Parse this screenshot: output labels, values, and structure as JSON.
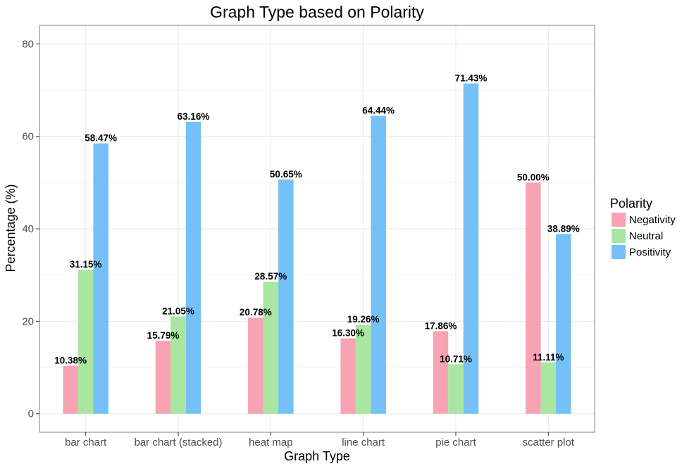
{
  "chart_data": {
    "type": "bar",
    "title": "Graph Type based on Polarity",
    "xlabel": "Graph Type",
    "ylabel": "Percentage (%)",
    "ylim": [
      -4,
      84
    ],
    "yticks": [
      0,
      20,
      40,
      60,
      80
    ],
    "grid": true,
    "legend": {
      "title": "Polarity",
      "position": "right"
    },
    "categories": [
      "bar chart",
      "bar chart (stacked)",
      "heat map",
      "line chart",
      "pie chart",
      "scatter plot"
    ],
    "series": [
      {
        "name": "Negativity",
        "color": "#F8A3B4",
        "values": [
          10.38,
          15.79,
          20.78,
          16.3,
          17.86,
          50.0
        ],
        "labels": [
          "10.38%",
          "15.79%",
          "20.78%",
          "16.30%",
          "17.86%",
          "50.00%"
        ]
      },
      {
        "name": "Neutral",
        "color": "#A8E6A1",
        "values": [
          31.15,
          21.05,
          28.57,
          19.26,
          10.71,
          11.11
        ],
        "labels": [
          "31.15%",
          "21.05%",
          "28.57%",
          "19.26%",
          "10.71%",
          "11.11%"
        ]
      },
      {
        "name": "Positivity",
        "color": "#74C0F7",
        "values": [
          58.47,
          63.16,
          50.65,
          64.44,
          71.43,
          38.89
        ],
        "labels": [
          "58.47%",
          "63.16%",
          "50.65%",
          "64.44%",
          "71.43%",
          "38.89%"
        ]
      }
    ]
  }
}
